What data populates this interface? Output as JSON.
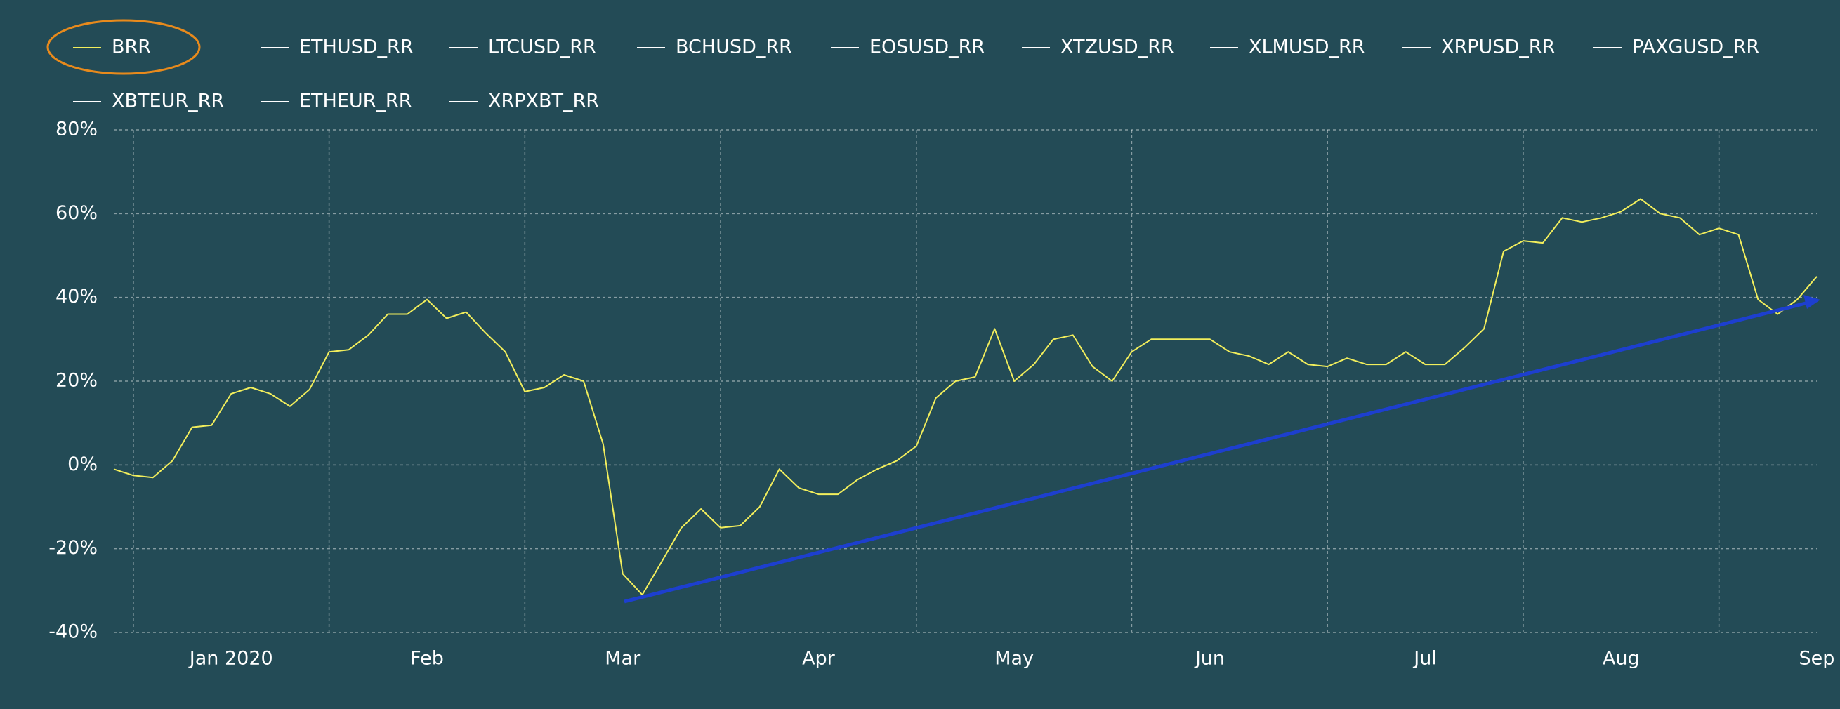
{
  "chart_data": {
    "type": "line",
    "categories": [
      null,
      null,
      null,
      null,
      null,
      null,
      "Jan 2020",
      null,
      null,
      null,
      null,
      null,
      null,
      null,
      null,
      null,
      "Feb",
      null,
      null,
      null,
      null,
      null,
      null,
      null,
      null,
      null,
      "Mar",
      null,
      null,
      null,
      null,
      null,
      null,
      null,
      null,
      null,
      "Apr",
      null,
      null,
      null,
      null,
      null,
      null,
      null,
      null,
      null,
      "May",
      null,
      null,
      null,
      null,
      null,
      null,
      null,
      null,
      null,
      "Jun",
      null,
      null,
      null,
      null,
      null,
      null,
      null,
      null,
      null,
      null,
      "Jul",
      null,
      null,
      null,
      null,
      null,
      null,
      null,
      null,
      null,
      "Aug",
      null,
      null,
      null,
      null,
      null,
      null,
      null,
      null,
      null,
      "Sep"
    ],
    "series": [
      {
        "name": "BRR",
        "color": "#f2ee5c",
        "values": [
          -1,
          -2.5,
          -3,
          1,
          9,
          9.5,
          17,
          18.5,
          17,
          14,
          18,
          27,
          27.5,
          31,
          36,
          36,
          39.5,
          35,
          36.5,
          31.5,
          27,
          17.5,
          18.5,
          21.5,
          20,
          5,
          -26,
          -31,
          -23,
          -15,
          -10.5,
          -15,
          -14.5,
          -10,
          -1,
          -5.5,
          -7,
          -7,
          -3.5,
          -1,
          1,
          4.5,
          16,
          20,
          21,
          32.5,
          20,
          24,
          30,
          31,
          23.5,
          20,
          27,
          30,
          30,
          30,
          30,
          27,
          26,
          24,
          27,
          24,
          23.5,
          25.5,
          24,
          24,
          27,
          24,
          24,
          28,
          32.5,
          51,
          53.5,
          53,
          59,
          58,
          59,
          60.5,
          63.5,
          60,
          59,
          55,
          56.5,
          55,
          39.5,
          36,
          39.5,
          45
        ]
      },
      {
        "name": "ETHUSD_RR",
        "color": "#ffffff"
      },
      {
        "name": "LTCUSD_RR",
        "color": "#ffffff"
      },
      {
        "name": "BCHUSD_RR",
        "color": "#ffffff"
      },
      {
        "name": "EOSUSD_RR",
        "color": "#ffffff"
      },
      {
        "name": "XTZUSD_RR",
        "color": "#ffffff"
      },
      {
        "name": "XLMUSD_RR",
        "color": "#ffffff"
      },
      {
        "name": "XRPUSD_RR",
        "color": "#ffffff"
      },
      {
        "name": "PAXGUSD_RR",
        "color": "#ffffff"
      },
      {
        "name": "XBTEUR_RR",
        "color": "#ffffff"
      },
      {
        "name": "ETHEUR_RR",
        "color": "#ffffff"
      },
      {
        "name": "XRPXBT_RR",
        "color": "#ffffff"
      }
    ],
    "ylim": [
      -40,
      80
    ],
    "yticks": [
      {
        "value": 80,
        "label": "80%"
      },
      {
        "value": 60,
        "label": "60%"
      },
      {
        "value": 40,
        "label": "40%"
      },
      {
        "value": 20,
        "label": "20%"
      },
      {
        "value": 0,
        "label": "0%"
      },
      {
        "value": -20,
        "label": "-20%"
      },
      {
        "value": -40,
        "label": "-40%"
      }
    ],
    "grid": true
  }
}
